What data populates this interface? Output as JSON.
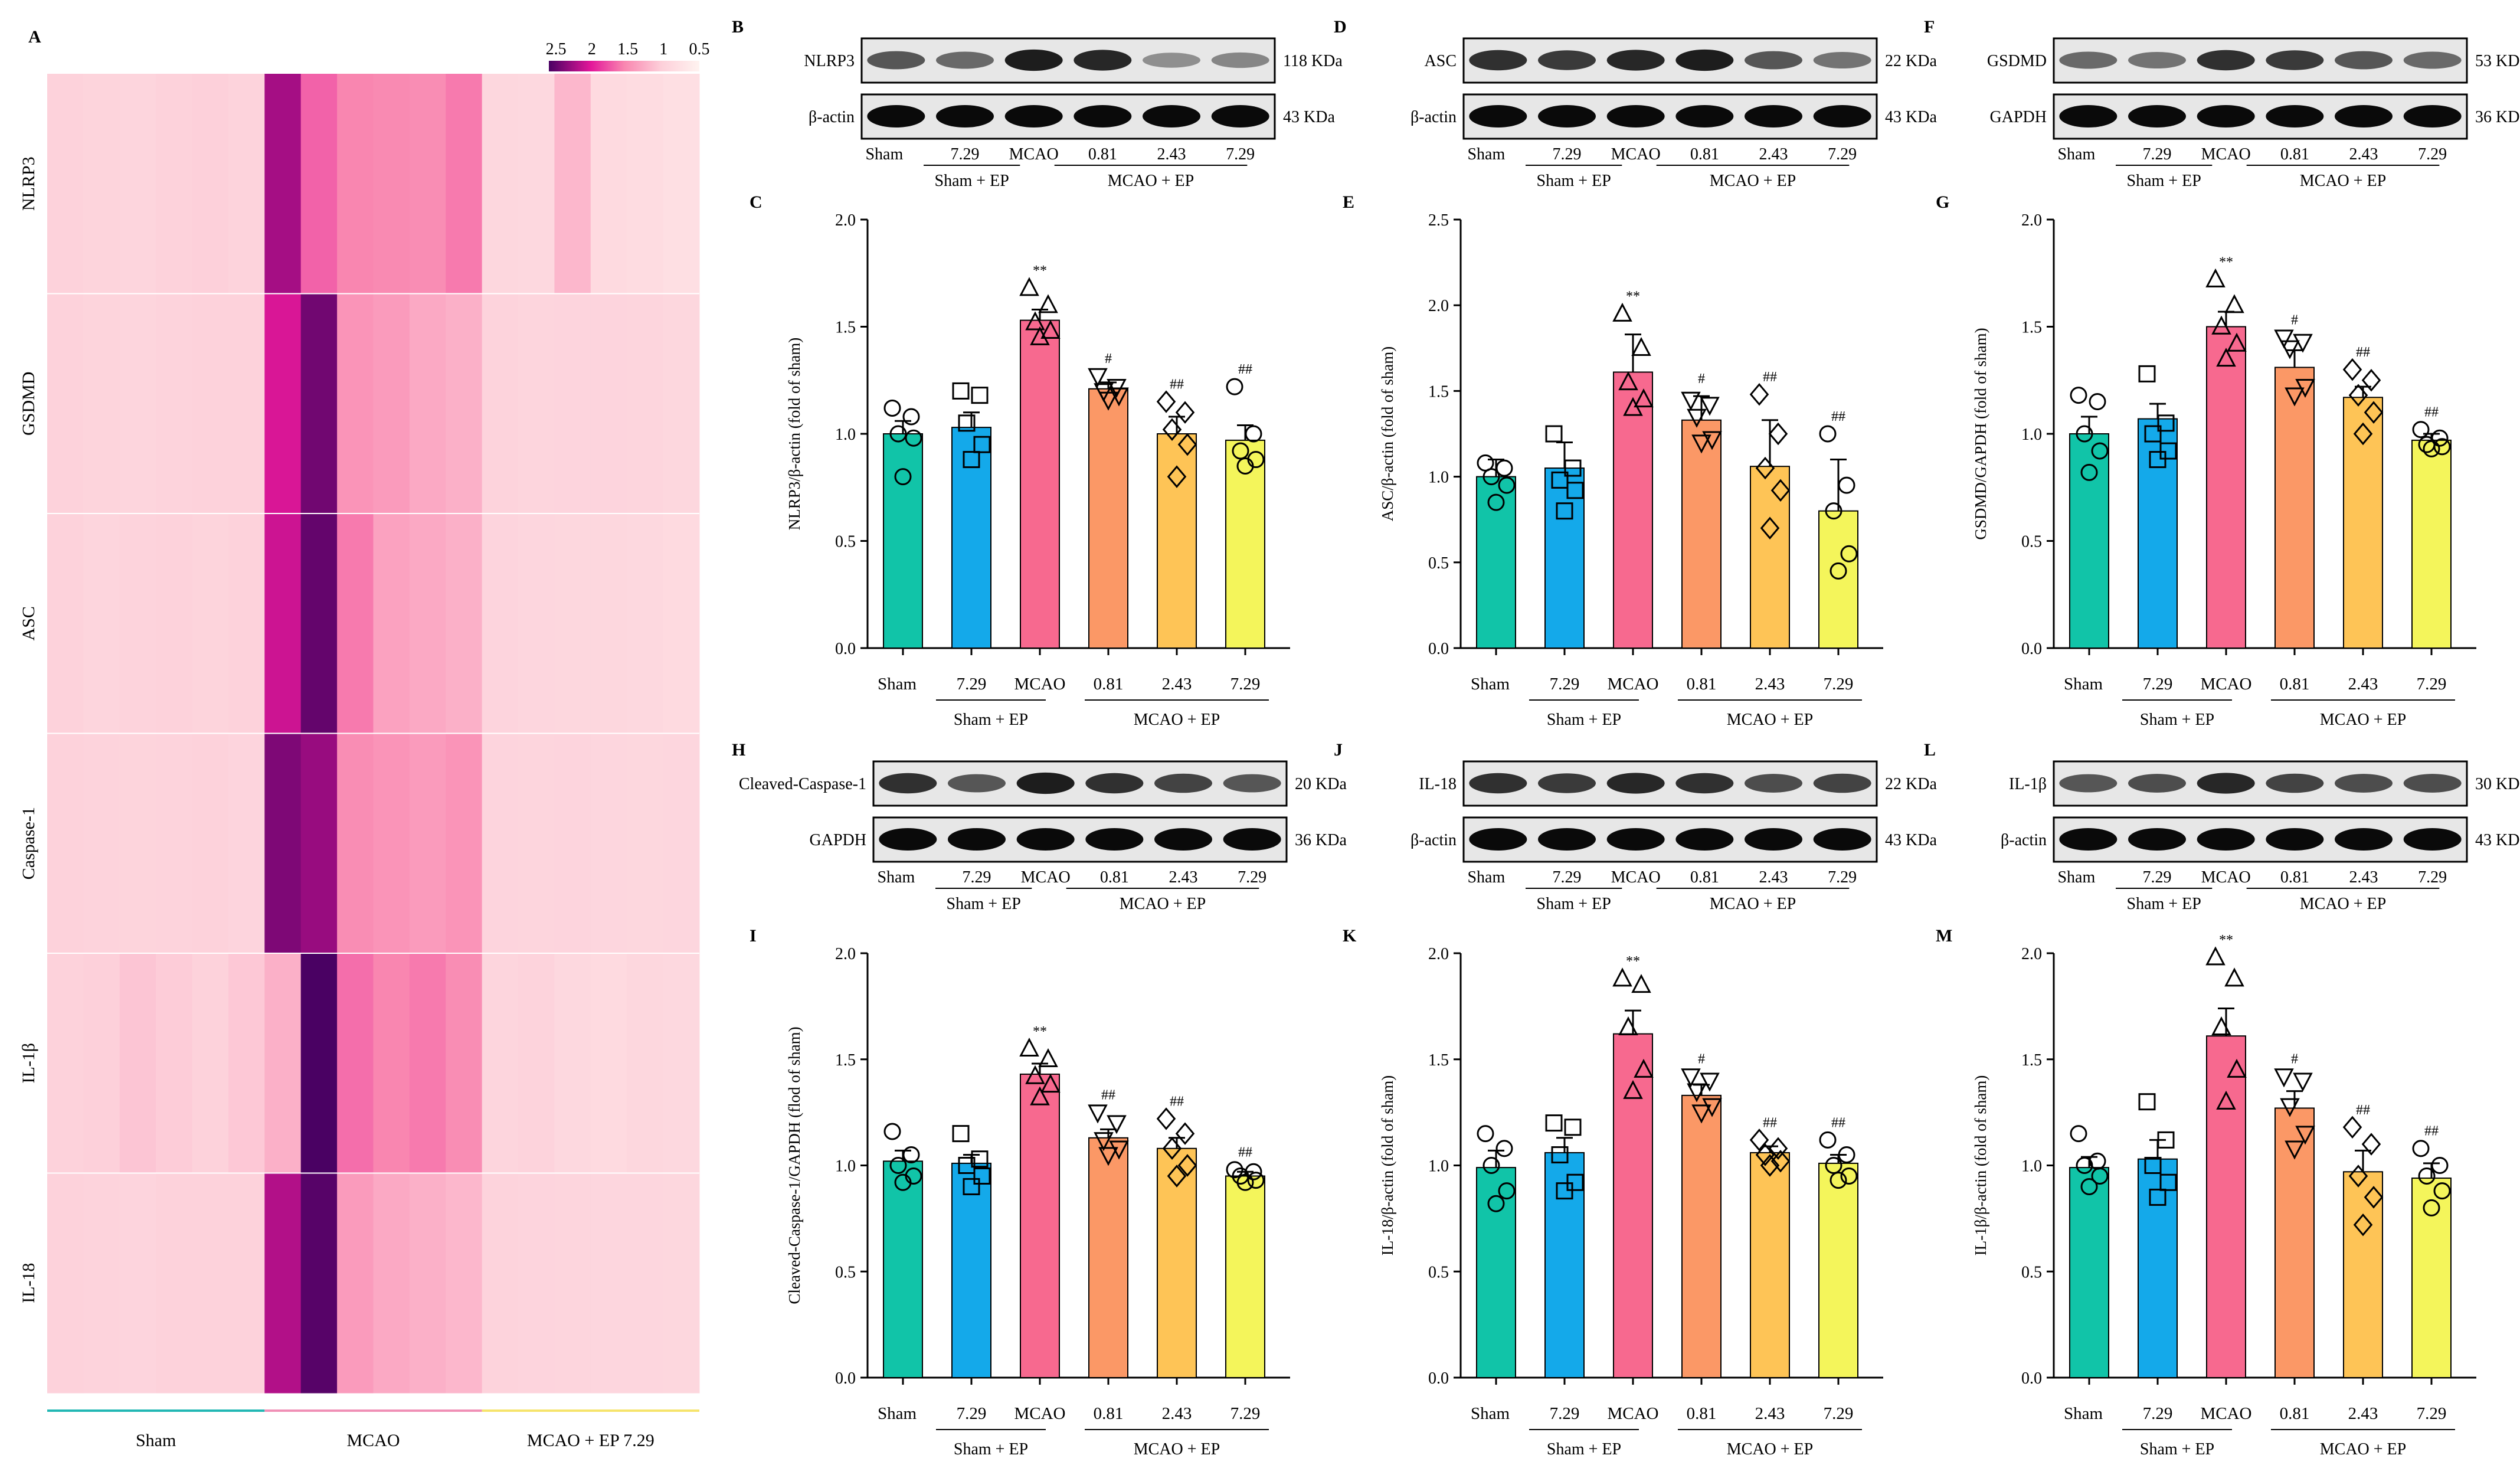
{
  "colors": {
    "bars": [
      "#11c4a8",
      "#14a9ea",
      "#f7698f",
      "#fb9866",
      "#fec456",
      "#f4f55b"
    ],
    "heat_low": "#fff0ee",
    "heat_high": "#4a0163",
    "group_lines": [
      "#22b7b4",
      "#f090b6",
      "#f6e46c"
    ]
  },
  "heatmap": {
    "panel": "A",
    "rows": [
      "NLRP3",
      "GSDMD",
      "ASC",
      "Caspase-1",
      "IL-1β",
      "IL-18"
    ],
    "groups": [
      "Sham",
      "MCAO",
      "MCAO + EP 7.29"
    ],
    "legend_ticks": [
      "2.5",
      "2",
      "1.5",
      "1",
      "0.5"
    ],
    "color_range": [
      0.5,
      2.6
    ],
    "values": [
      [
        1.0,
        0.97,
        0.95,
        0.99,
        1.02,
        0.98,
        2.25,
        1.7,
        1.55,
        1.52,
        1.5,
        1.6,
        0.92,
        0.9,
        1.2,
        0.88,
        0.85,
        0.8
      ],
      [
        1.0,
        0.97,
        0.95,
        0.98,
        0.99,
        1.0,
        2.05,
        2.45,
        1.45,
        1.4,
        1.3,
        1.25,
        0.98,
        0.95,
        0.96,
        0.96,
        0.95,
        0.92
      ],
      [
        1.0,
        0.95,
        0.98,
        1.0,
        0.97,
        0.99,
        2.1,
        2.5,
        1.6,
        1.35,
        1.3,
        1.25,
        0.96,
        0.94,
        0.92,
        0.92,
        0.9,
        0.88
      ],
      [
        1.0,
        0.98,
        0.97,
        0.98,
        1.0,
        0.96,
        2.4,
        2.3,
        1.5,
        1.45,
        1.4,
        1.45,
        0.96,
        0.95,
        0.96,
        0.93,
        0.92,
        0.94
      ],
      [
        1.0,
        1.02,
        1.1,
        1.05,
        1.0,
        1.08,
        1.25,
        2.6,
        1.65,
        1.55,
        1.6,
        1.5,
        0.95,
        0.98,
        0.9,
        0.88,
        0.92,
        0.9
      ],
      [
        1.0,
        0.98,
        0.96,
        1.0,
        1.0,
        1.0,
        2.2,
        2.55,
        1.4,
        1.3,
        1.25,
        1.2,
        0.98,
        0.96,
        0.95,
        0.94,
        0.93,
        0.92
      ]
    ]
  },
  "blots": [
    {
      "panel": "B",
      "rows": [
        {
          "label": "NLRP3",
          "kda": "118 KDa"
        },
        {
          "label": "β-actin",
          "kda": "43 KDa"
        }
      ],
      "intensity": [
        [
          0.6,
          0.5,
          0.9,
          0.85,
          0.3,
          0.35
        ],
        [
          1,
          1,
          1,
          1,
          1,
          1
        ]
      ]
    },
    {
      "panel": "D",
      "rows": [
        {
          "label": "ASC",
          "kda": "22 KDa"
        },
        {
          "label": "β-actin",
          "kda": "43 KDa"
        }
      ],
      "intensity": [
        [
          0.8,
          0.75,
          0.85,
          0.9,
          0.6,
          0.45
        ],
        [
          1,
          1,
          1,
          1,
          1,
          1
        ]
      ]
    },
    {
      "panel": "F",
      "rows": [
        {
          "label": "GSDMD",
          "kda": "53 KDa"
        },
        {
          "label": "GAPDH",
          "kda": "36 KDa"
        }
      ],
      "intensity": [
        [
          0.5,
          0.45,
          0.8,
          0.75,
          0.6,
          0.5
        ],
        [
          1,
          1,
          1,
          1,
          1,
          1
        ]
      ]
    },
    {
      "panel": "H",
      "rows": [
        {
          "label": "Cleaved-Caspase-1",
          "kda": "20 KDa"
        },
        {
          "label": "GAPDH",
          "kda": "36 KDa"
        }
      ],
      "intensity": [
        [
          0.8,
          0.6,
          0.9,
          0.8,
          0.7,
          0.6
        ],
        [
          1,
          1,
          1,
          1,
          1,
          1
        ]
      ]
    },
    {
      "panel": "J",
      "rows": [
        {
          "label": "IL-18",
          "kda": "22 KDa"
        },
        {
          "label": "β-actin",
          "kda": "43 KDa"
        }
      ],
      "intensity": [
        [
          0.8,
          0.75,
          0.85,
          0.8,
          0.65,
          0.7
        ],
        [
          1,
          1,
          1,
          1,
          1,
          1
        ]
      ]
    },
    {
      "panel": "L",
      "rows": [
        {
          "label": "IL-1β",
          "kda": "30 KDa"
        },
        {
          "label": "β-actin",
          "kda": "43 KDa"
        }
      ],
      "intensity": [
        [
          0.6,
          0.65,
          0.85,
          0.7,
          0.65,
          0.65
        ],
        [
          1,
          1,
          1,
          1,
          1,
          1
        ]
      ]
    }
  ],
  "lane_labels": {
    "top": [
      "Sham",
      "7.29",
      "MCAO",
      "0.81",
      "2.43",
      "7.29"
    ],
    "groups": [
      "Sham + EP",
      "MCAO + EP"
    ]
  },
  "chart_data": [
    {
      "panel": "C",
      "type": "bar",
      "categories": [
        "Sham",
        "7.29",
        "MCAO",
        "0.81",
        "2.43",
        "7.29"
      ],
      "group_labels": [
        "Sham + EP",
        "MCAO + EP"
      ],
      "ylabel": "NLRP3/β-actin (fold of sham)",
      "ylim": [
        0,
        2.0
      ],
      "yticks": [
        "0.0",
        "0.5",
        "1.0",
        "1.5",
        "2.0"
      ],
      "values": [
        1.0,
        1.03,
        1.53,
        1.21,
        1.0,
        0.97
      ],
      "errors": [
        0.06,
        0.07,
        0.05,
        0.03,
        0.08,
        0.07
      ],
      "points": [
        [
          1.12,
          1.08,
          1.0,
          0.98,
          0.8
        ],
        [
          1.2,
          1.18,
          1.05,
          0.95,
          0.88
        ],
        [
          1.68,
          1.6,
          1.52,
          1.48,
          1.45
        ],
        [
          1.27,
          1.22,
          1.2,
          1.18,
          1.16
        ],
        [
          1.15,
          1.1,
          1.02,
          0.95,
          0.8
        ],
        [
          1.22,
          1.0,
          0.92,
          0.88,
          0.85
        ]
      ],
      "sig": [
        "",
        "",
        "**",
        "#",
        "##",
        "##"
      ]
    },
    {
      "panel": "E",
      "type": "bar",
      "categories": [
        "Sham",
        "7.29",
        "MCAO",
        "0.81",
        "2.43",
        "7.29"
      ],
      "group_labels": [
        "Sham + EP",
        "MCAO + EP"
      ],
      "ylabel": "ASC/β-actin (fold of sham)",
      "ylim": [
        0,
        2.5
      ],
      "yticks": [
        "0.0",
        "0.5",
        "1.0",
        "1.5",
        "2.0",
        "2.5"
      ],
      "values": [
        1.0,
        1.05,
        1.61,
        1.33,
        1.06,
        0.8
      ],
      "errors": [
        0.1,
        0.15,
        0.22,
        0.14,
        0.27,
        0.3
      ],
      "points": [
        [
          1.08,
          1.05,
          1.0,
          0.95,
          0.85
        ],
        [
          1.25,
          1.05,
          0.98,
          0.92,
          0.8
        ],
        [
          1.95,
          1.75,
          1.55,
          1.45,
          1.4
        ],
        [
          1.45,
          1.42,
          1.35,
          1.22,
          1.2
        ],
        [
          1.48,
          1.25,
          1.05,
          0.92,
          0.7
        ],
        [
          1.25,
          0.95,
          0.8,
          0.55,
          0.45
        ]
      ],
      "sig": [
        "",
        "",
        "**",
        "#",
        "##",
        "##"
      ]
    },
    {
      "panel": "G",
      "type": "bar",
      "categories": [
        "Sham",
        "7.29",
        "MCAO",
        "0.81",
        "2.43",
        "7.29"
      ],
      "group_labels": [
        "Sham + EP",
        "MCAO + EP"
      ],
      "ylabel": "GSDMD/GAPDH (fold of sham)",
      "ylim": [
        0,
        2.0
      ],
      "yticks": [
        "0.0",
        "0.5",
        "1.0",
        "1.5",
        "2.0"
      ],
      "values": [
        1.0,
        1.07,
        1.5,
        1.31,
        1.17,
        0.97
      ],
      "errors": [
        0.08,
        0.07,
        0.07,
        0.08,
        0.05,
        0.03
      ],
      "points": [
        [
          1.18,
          1.15,
          1.0,
          0.92,
          0.82
        ],
        [
          1.28,
          1.05,
          1.0,
          0.92,
          0.88
        ],
        [
          1.72,
          1.6,
          1.5,
          1.42,
          1.35
        ],
        [
          1.45,
          1.43,
          1.4,
          1.22,
          1.18
        ],
        [
          1.3,
          1.25,
          1.18,
          1.1,
          1.0
        ],
        [
          1.02,
          0.98,
          0.95,
          0.94,
          0.93
        ]
      ],
      "sig": [
        "",
        "",
        "**",
        "#",
        "##",
        "##"
      ]
    },
    {
      "panel": "I",
      "type": "bar",
      "categories": [
        "Sham",
        "7.29",
        "MCAO",
        "0.81",
        "2.43",
        "7.29"
      ],
      "group_labels": [
        "Sham + EP",
        "MCAO + EP"
      ],
      "ylabel": "Cleaved-Caspase-1/GAPDH (flod of sham)",
      "ylim": [
        0,
        2.0
      ],
      "yticks": [
        "0.0",
        "0.5",
        "1.0",
        "1.5",
        "2.0"
      ],
      "values": [
        1.02,
        1.01,
        1.43,
        1.13,
        1.08,
        0.95
      ],
      "errors": [
        0.05,
        0.04,
        0.05,
        0.04,
        0.05,
        0.02
      ],
      "points": [
        [
          1.16,
          1.05,
          1.0,
          0.95,
          0.92
        ],
        [
          1.15,
          1.03,
          1.0,
          0.95,
          0.9
        ],
        [
          1.55,
          1.5,
          1.42,
          1.38,
          1.32
        ],
        [
          1.25,
          1.2,
          1.12,
          1.08,
          1.05
        ],
        [
          1.22,
          1.15,
          1.08,
          1.0,
          0.95
        ],
        [
          0.98,
          0.97,
          0.95,
          0.93,
          0.92
        ]
      ],
      "sig": [
        "",
        "",
        "**",
        "##",
        "##",
        "##"
      ]
    },
    {
      "panel": "K",
      "type": "bar",
      "categories": [
        "Sham",
        "7.29",
        "MCAO",
        "0.81",
        "2.43",
        "7.29"
      ],
      "group_labels": [
        "Sham + EP",
        "MCAO + EP"
      ],
      "ylabel": "IL-18/β-actin (fold of sham)",
      "ylim": [
        0,
        2.0
      ],
      "yticks": [
        "0.0",
        "0.5",
        "1.0",
        "1.5",
        "2.0"
      ],
      "values": [
        0.99,
        1.06,
        1.62,
        1.33,
        1.06,
        1.01
      ],
      "errors": [
        0.08,
        0.07,
        0.11,
        0.05,
        0.03,
        0.04
      ],
      "points": [
        [
          1.15,
          1.08,
          1.0,
          0.88,
          0.82
        ],
        [
          1.2,
          1.18,
          1.05,
          0.92,
          0.88
        ],
        [
          1.88,
          1.85,
          1.65,
          1.45,
          1.35
        ],
        [
          1.42,
          1.4,
          1.35,
          1.28,
          1.25
        ],
        [
          1.12,
          1.08,
          1.05,
          1.02,
          1.0
        ],
        [
          1.12,
          1.05,
          1.0,
          0.95,
          0.93
        ]
      ],
      "sig": [
        "",
        "",
        "**",
        "#",
        "##",
        "##"
      ]
    },
    {
      "panel": "M",
      "type": "bar",
      "categories": [
        "Sham",
        "7.29",
        "MCAO",
        "0.81",
        "2.43",
        "7.29"
      ],
      "group_labels": [
        "Sham + EP",
        "MCAO + EP"
      ],
      "ylabel": "IL-1β/β-actin (fold of sham)",
      "ylim": [
        0,
        2.0
      ],
      "yticks": [
        "0.0",
        "0.5",
        "1.0",
        "1.5",
        "2.0"
      ],
      "values": [
        0.99,
        1.03,
        1.61,
        1.27,
        0.97,
        0.94
      ],
      "errors": [
        0.05,
        0.09,
        0.13,
        0.08,
        0.1,
        0.07
      ],
      "points": [
        [
          1.15,
          1.02,
          1.0,
          0.95,
          0.9
        ],
        [
          1.3,
          1.12,
          1.0,
          0.92,
          0.85
        ],
        [
          1.98,
          1.88,
          1.65,
          1.45,
          1.3
        ],
        [
          1.42,
          1.4,
          1.28,
          1.15,
          1.08
        ],
        [
          1.18,
          1.1,
          0.95,
          0.85,
          0.72
        ],
        [
          1.08,
          1.0,
          0.95,
          0.88,
          0.8
        ]
      ],
      "sig": [
        "",
        "",
        "**",
        "#",
        "##",
        "##"
      ]
    }
  ]
}
